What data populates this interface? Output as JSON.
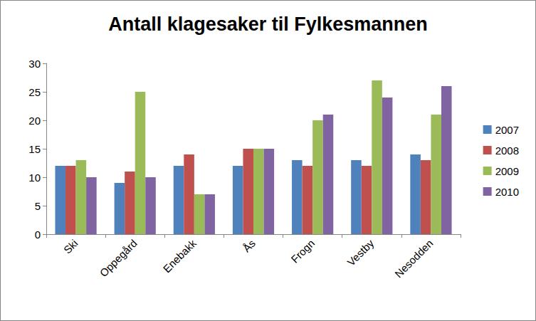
{
  "chart_data": {
    "type": "bar",
    "title": "Antall klagesaker til Fylkesmannen",
    "categories": [
      "Ski",
      "Oppegård",
      "Enebakk",
      "Ås",
      "Frogn",
      "Vestby",
      "Nesodden"
    ],
    "series": [
      {
        "name": "2007",
        "color": "#4F81BD",
        "values": [
          12,
          9,
          12,
          12,
          13,
          13,
          14
        ]
      },
      {
        "name": "2008",
        "color": "#C0504D",
        "values": [
          12,
          11,
          14,
          15,
          12,
          12,
          13
        ]
      },
      {
        "name": "2009",
        "color": "#9BBB59",
        "values": [
          13,
          25,
          7,
          15,
          20,
          27,
          21
        ]
      },
      {
        "name": "2010",
        "color": "#8064A2",
        "values": [
          10,
          10,
          7,
          15,
          21,
          24,
          26
        ]
      }
    ],
    "ylim": [
      0,
      30
    ],
    "yticks": [
      0,
      5,
      10,
      15,
      20,
      25,
      30
    ],
    "grid": false,
    "legend": "right"
  }
}
